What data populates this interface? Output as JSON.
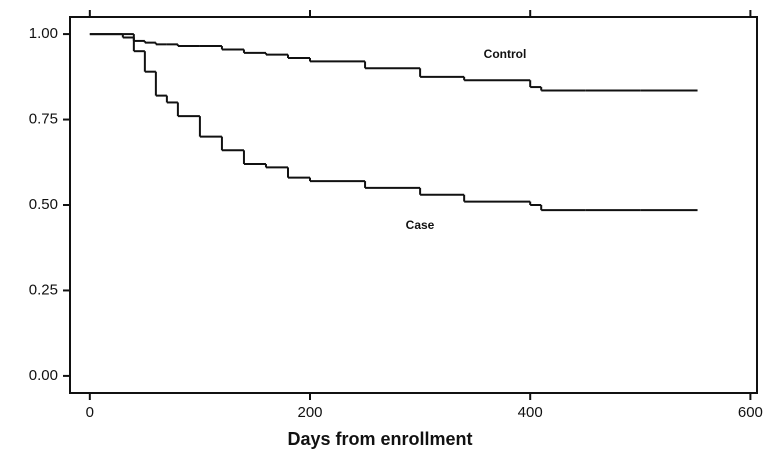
{
  "chart_data": {
    "type": "line",
    "step": true,
    "x_label": "Days from enrollment",
    "x": [
      0,
      30,
      40,
      50,
      60,
      70,
      80,
      100,
      120,
      140,
      160,
      180,
      200,
      250,
      300,
      340,
      400,
      410,
      450,
      500,
      552
    ],
    "series": [
      {
        "name": "Control",
        "color": "#111111",
        "values": [
          1,
          1,
          0.98,
          0.975,
          0.97,
          0.97,
          0.965,
          0.965,
          0.955,
          0.945,
          0.94,
          0.93,
          0.92,
          0.9,
          0.875,
          0.865,
          0.845,
          0.835,
          0.835,
          0.835,
          0.835
        ]
      },
      {
        "name": "Case",
        "color": "#111111",
        "values": [
          1,
          0.99,
          0.95,
          0.89,
          0.82,
          0.8,
          0.76,
          0.7,
          0.66,
          0.62,
          0.61,
          0.58,
          0.57,
          0.55,
          0.53,
          0.51,
          0.5,
          0.485,
          0.485,
          0.485,
          0.485
        ]
      }
    ],
    "xlim": [
      -18,
      606
    ],
    "xticks": [
      0,
      200,
      400,
      600
    ],
    "ylim": [
      -0.05,
      1.05
    ],
    "yticks": [
      {
        "value": 0,
        "label": "0.00"
      },
      {
        "value": 0.25,
        "label": "0.25"
      },
      {
        "value": 0.5,
        "label": "0.50"
      },
      {
        "value": 0.75,
        "label": "0.75"
      },
      {
        "value": 1,
        "label": "1.00"
      }
    ],
    "grid": false
  }
}
